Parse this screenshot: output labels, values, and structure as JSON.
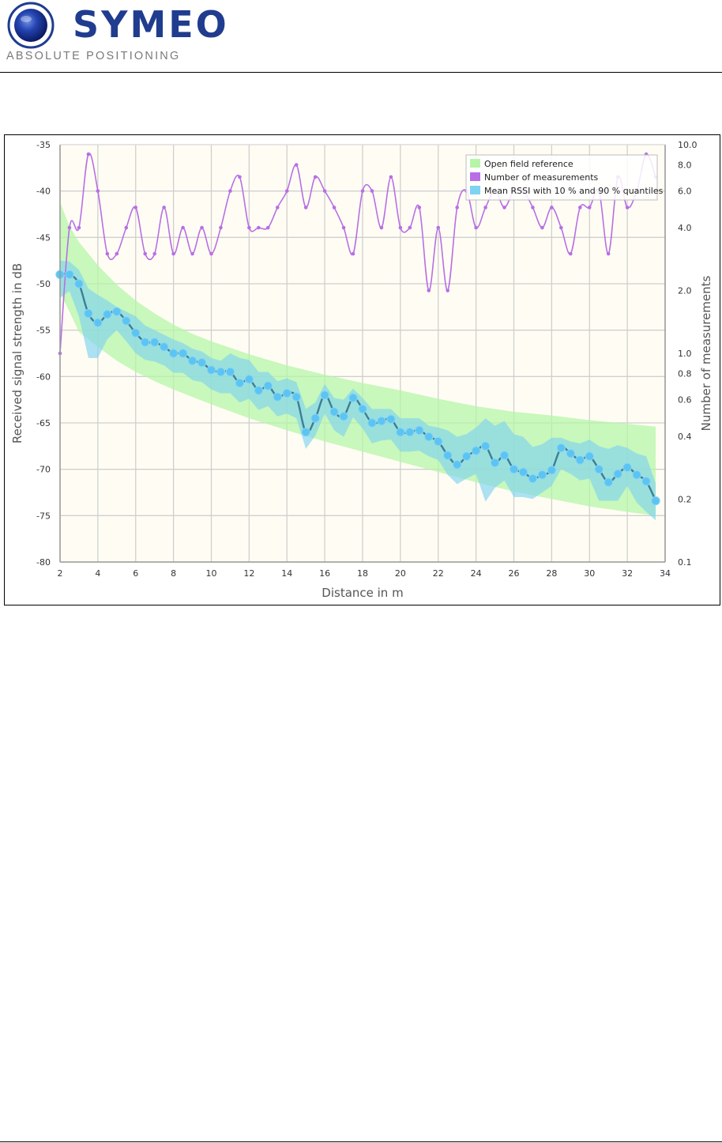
{
  "header": {
    "brand_name": "SYMEO",
    "brand_tagline": "ABSOLUTE POSITIONING"
  },
  "colors": {
    "brand_blue": "#1f3c8f",
    "plot_background": "#fffdf3",
    "open_field": "#b6f5a8",
    "measurements": "#b86fe6",
    "rssi_band": "#7fd3f0",
    "rssi_points": "#5cc4f2",
    "rssi_line": "#3d7e96"
  },
  "chart_data": {
    "type": "line",
    "xlabel": "Distance in m",
    "ylabel": "Received signal strength in dB",
    "y2label": "Number of measurements",
    "xlim": [
      2,
      34
    ],
    "ylim": [
      -80,
      -35
    ],
    "y2lim": [
      0.1,
      10
    ],
    "y2_scale": "log",
    "grid": true,
    "legend_position": "top-right",
    "x_ticks": [
      "2",
      "4",
      "6",
      "8",
      "10",
      "12",
      "14",
      "16",
      "18",
      "20",
      "22",
      "24",
      "26",
      "28",
      "30",
      "32",
      "34"
    ],
    "y_ticks": [
      "-35",
      "-40",
      "-45",
      "-50",
      "-55",
      "-60",
      "-65",
      "-70",
      "-75",
      "-80"
    ],
    "y2_ticks": [
      {
        "v": 10,
        "label": "10.0"
      },
      {
        "v": 8,
        "label": "8.0"
      },
      {
        "v": 6,
        "label": "6.0"
      },
      {
        "v": 4,
        "label": "4.0"
      },
      {
        "v": 2,
        "label": "2.0"
      },
      {
        "v": 1,
        "label": "1.0"
      },
      {
        "v": 0.8,
        "label": "0.8"
      },
      {
        "v": 0.6,
        "label": "0.6"
      },
      {
        "v": 0.4,
        "label": "0.4"
      },
      {
        "v": 0.2,
        "label": "0.2"
      },
      {
        "v": 0.1,
        "label": "0.1"
      }
    ],
    "legend": [
      "Open field reference",
      "Number of measurements",
      "Mean RSSI with 10 % and 90 % quantiles"
    ],
    "series": [
      {
        "name": "Open field reference",
        "kind": "band",
        "x": [
          2,
          2.5,
          3,
          4,
          5,
          6,
          7,
          8,
          9,
          10,
          12,
          14,
          16,
          18,
          20,
          22,
          24,
          26,
          28,
          30,
          32,
          33.5
        ],
        "low": [
          -51,
          -53,
          -55.2,
          -56.8,
          -58.3,
          -59.5,
          -60.5,
          -61.4,
          -62.2,
          -63,
          -64.5,
          -65.8,
          -67,
          -68.1,
          -69.2,
          -70.3,
          -71.4,
          -72.4,
          -73.2,
          -74,
          -74.6,
          -75
        ],
        "high": [
          -41.2,
          -43.8,
          -45.5,
          -48,
          -50.1,
          -51.8,
          -53.2,
          -54.4,
          -55.4,
          -56.2,
          -57.6,
          -58.8,
          -59.8,
          -60.7,
          -61.5,
          -62.4,
          -63.2,
          -63.8,
          -64.2,
          -64.7,
          -65.1,
          -65.4
        ]
      },
      {
        "name": "Number of measurements",
        "kind": "line",
        "x": [
          2,
          2.5,
          3,
          3.5,
          4,
          4.5,
          5,
          5.5,
          6,
          6.5,
          7,
          7.5,
          8,
          8.5,
          9,
          9.5,
          10,
          10.5,
          11,
          11.5,
          12,
          12.5,
          13,
          13.5,
          14,
          14.5,
          15,
          15.5,
          16,
          16.5,
          17,
          17.5,
          18,
          18.5,
          19,
          19.5,
          20,
          20.5,
          21,
          21.5,
          22,
          22.5,
          23,
          23.5,
          24,
          24.5,
          25,
          25.5,
          26,
          26.5,
          27,
          27.5,
          28,
          28.5,
          29,
          29.5,
          30,
          30.5,
          31,
          31.5,
          32,
          32.5,
          33,
          33.5
        ],
        "values": [
          1,
          4,
          4,
          9,
          6,
          3,
          3,
          4,
          5,
          3,
          3,
          5,
          3,
          4,
          3,
          4,
          3,
          4,
          6,
          7,
          4,
          4,
          4,
          5,
          6,
          8,
          5,
          7,
          6,
          5,
          4,
          3,
          6,
          6,
          4,
          7,
          4,
          4,
          5,
          2,
          4,
          2,
          5,
          6,
          4,
          5,
          6,
          5,
          6,
          6,
          5,
          4,
          5,
          4,
          3,
          5,
          5,
          6,
          3,
          7,
          5,
          6,
          9,
          7
        ]
      },
      {
        "name": "Mean RSSI with 10 % and 90 % quantiles",
        "kind": "line_band",
        "x": [
          2,
          2.5,
          3,
          3.5,
          4,
          4.5,
          5,
          5.5,
          6,
          6.5,
          7,
          7.5,
          8,
          8.5,
          9,
          9.5,
          10,
          10.5,
          11,
          11.5,
          12,
          12.5,
          13,
          13.5,
          14,
          14.5,
          15,
          15.5,
          16,
          16.5,
          17,
          17.5,
          18,
          18.5,
          19,
          19.5,
          20,
          20.5,
          21,
          21.5,
          22,
          22.5,
          23,
          23.5,
          24,
          24.5,
          25,
          25.5,
          26,
          26.5,
          27,
          27.5,
          28,
          28.5,
          29,
          29.5,
          30,
          30.5,
          31,
          31.5,
          32,
          32.5,
          33,
          33.5
        ],
        "values": [
          -49,
          -49,
          -50,
          -53.2,
          -54.2,
          -53.3,
          -53,
          -54,
          -55.3,
          -56.3,
          -56.3,
          -56.8,
          -57.5,
          -57.5,
          -58.3,
          -58.5,
          -59.3,
          -59.5,
          -59.5,
          -60.7,
          -60.3,
          -61.5,
          -61,
          -62.2,
          -61.8,
          -62.2,
          -66,
          -64.5,
          -62,
          -63.8,
          -64.3,
          -62.3,
          -63.5,
          -65,
          -64.8,
          -64.6,
          -66,
          -66,
          -65.8,
          -66.5,
          -67,
          -68.5,
          -69.5,
          -68.6,
          -68,
          -67.5,
          -69.3,
          -68.5,
          -70,
          -70.3,
          -71,
          -70.6,
          -70.1,
          -67.7,
          -68.3,
          -69,
          -68.6,
          -70,
          -71.4,
          -70.5,
          -69.8,
          -70.6,
          -71.3,
          -73.4
        ],
        "low": [
          -51.5,
          -50.8,
          -53.5,
          -58,
          -58,
          -56,
          -55,
          -56.2,
          -57.5,
          -58.2,
          -58.4,
          -58.8,
          -59.6,
          -59.6,
          -60.4,
          -60.6,
          -61.4,
          -61.8,
          -61.8,
          -62.8,
          -62.4,
          -63.6,
          -63.2,
          -64.3,
          -64,
          -64.5,
          -67.8,
          -66.4,
          -64,
          -65.8,
          -66.5,
          -64.4,
          -65.6,
          -67.2,
          -66.9,
          -66.8,
          -68.1,
          -68.1,
          -68,
          -68.6,
          -69,
          -70.6,
          -71.6,
          -71,
          -70.5,
          -73.5,
          -72,
          -71.2,
          -73,
          -73,
          -73.2,
          -72.5,
          -71.8,
          -70,
          -70.5,
          -71.2,
          -71,
          -73.4,
          -73.4,
          -73.4,
          -71.8,
          -73.6,
          -74.6,
          -75.5
        ],
        "high": [
          -47.5,
          -47.6,
          -48.5,
          -50.5,
          -51.2,
          -51.8,
          -52.5,
          -53,
          -53.5,
          -54.5,
          -55,
          -55.5,
          -56,
          -56.4,
          -57,
          -57.3,
          -58,
          -58.3,
          -57.5,
          -58,
          -58.2,
          -59.5,
          -59.5,
          -60.5,
          -60.2,
          -60.6,
          -63.5,
          -62.8,
          -60.8,
          -62.3,
          -62.5,
          -61.3,
          -62.3,
          -63.5,
          -63.5,
          -63.5,
          -64.5,
          -64.5,
          -64.5,
          -65.3,
          -65.5,
          -65.8,
          -66.5,
          -66.2,
          -65.5,
          -64.5,
          -65.3,
          -64.8,
          -66.2,
          -66.5,
          -67.6,
          -67.3,
          -66.6,
          -66.6,
          -67,
          -67.2,
          -66.8,
          -67.5,
          -67.8,
          -67.4,
          -67.7,
          -68.3,
          -68.6,
          -71.5
        ]
      }
    ]
  }
}
